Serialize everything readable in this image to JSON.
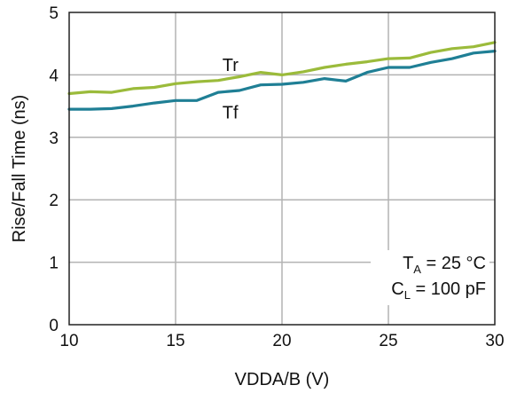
{
  "chart_data": {
    "type": "line",
    "xlabel": "VDDA/B (V)",
    "ylabel": "Rise/Fall Time (ns)",
    "xlim": [
      10,
      30
    ],
    "ylim": [
      0,
      5
    ],
    "xticks": [
      10,
      15,
      20,
      25,
      30
    ],
    "yticks": [
      0,
      1,
      2,
      3,
      4,
      5
    ],
    "grid": true,
    "colors": {
      "Tr": "#9bbb3b",
      "Tf": "#1f7f95"
    },
    "series": [
      {
        "name": "Tr",
        "x": [
          10,
          11,
          12,
          13,
          14,
          15,
          16,
          17,
          18,
          19,
          20,
          21,
          22,
          23,
          24,
          25,
          26,
          27,
          28,
          29,
          30
        ],
        "values": [
          3.7,
          3.73,
          3.72,
          3.78,
          3.8,
          3.86,
          3.89,
          3.91,
          3.97,
          4.04,
          4.0,
          4.05,
          4.12,
          4.17,
          4.21,
          4.26,
          4.27,
          4.36,
          4.42,
          4.45,
          4.52
        ]
      },
      {
        "name": "Tf",
        "x": [
          10,
          11,
          12,
          13,
          14,
          15,
          16,
          17,
          18,
          19,
          20,
          21,
          22,
          23,
          24,
          25,
          26,
          27,
          28,
          29,
          30
        ],
        "values": [
          3.45,
          3.45,
          3.46,
          3.5,
          3.55,
          3.59,
          3.59,
          3.72,
          3.75,
          3.84,
          3.85,
          3.88,
          3.94,
          3.9,
          4.04,
          4.12,
          4.12,
          4.2,
          4.26,
          4.35,
          4.38
        ]
      }
    ],
    "annotations": {
      "ta_main": "T",
      "ta_sub": "A",
      "ta_rest": " = 25 °C",
      "cl_main": "C",
      "cl_sub": "L",
      "cl_rest": " = 100 pF"
    }
  }
}
